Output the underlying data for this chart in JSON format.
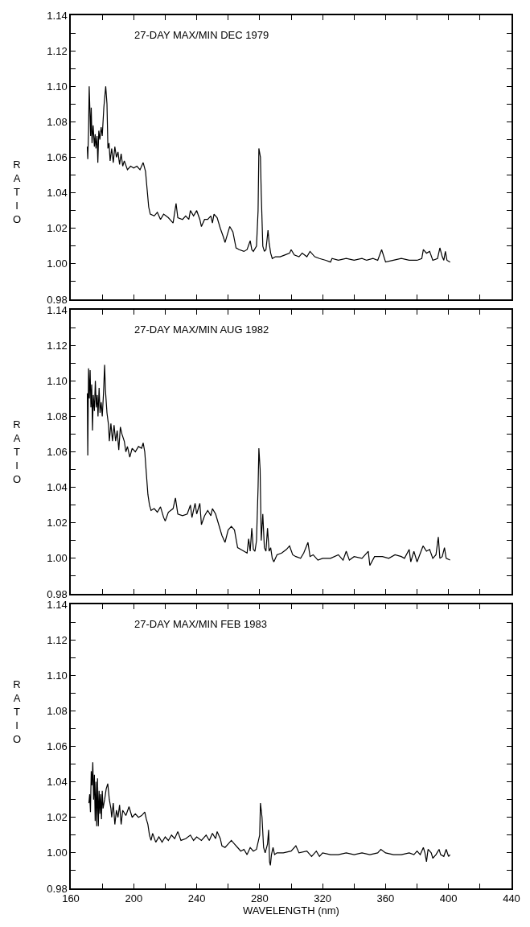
{
  "chart_data": [
    {
      "type": "line",
      "annotations": [
        "27-DAY MAX/MIN DEC 1979"
      ],
      "ylabel": "RATIO",
      "tick_labels": "y",
      "xlim": [
        160,
        440
      ],
      "xticks": [
        160,
        {
          "value": 180,
          "label": null
        },
        200,
        {
          "value": 220,
          "label": null
        },
        240,
        {
          "value": 260,
          "label": null
        },
        280,
        {
          "value": 300,
          "label": null
        },
        320,
        {
          "value": 340,
          "label": null
        },
        360,
        {
          "value": 380,
          "label": null
        },
        400,
        {
          "value": 420,
          "label": null
        },
        440
      ],
      "ylim": [
        0.98,
        1.14
      ],
      "yticks": [
        0.98,
        {
          "value": 0.99,
          "label": null
        },
        {
          "value": 1.0,
          "label": "1.00"
        },
        {
          "value": 1.01,
          "label": null
        },
        1.02,
        {
          "value": 1.03,
          "label": null
        },
        1.04,
        {
          "value": 1.05,
          "label": null
        },
        1.06,
        {
          "value": 1.07,
          "label": null
        },
        1.08,
        {
          "value": 1.09,
          "label": null
        },
        {
          "value": 1.1,
          "label": "1.10"
        },
        {
          "value": 1.11,
          "label": null
        },
        1.12,
        {
          "value": 1.13,
          "label": null
        },
        1.14
      ],
      "series": [
        {
          "color": "#000000",
          "x": [
            170.5,
            170.8,
            171.3,
            171.7,
            172.2,
            172.6,
            173,
            173.5,
            174.2,
            175,
            175.5,
            176,
            176.7,
            177.2,
            177.8,
            178.5,
            179.3,
            180,
            181,
            182.2,
            183,
            183.6,
            184.3,
            185,
            186,
            187,
            188,
            189,
            190,
            191,
            192,
            193,
            194,
            196,
            198,
            200,
            202,
            204,
            206,
            207.5,
            208.5,
            209.5,
            210.5,
            213,
            215,
            217,
            219,
            222,
            225,
            226.9,
            228,
            231,
            233,
            235,
            236,
            238,
            240,
            242,
            243,
            245,
            247,
            249,
            250,
            251,
            253,
            255,
            257,
            258,
            260,
            261,
            263,
            265,
            267,
            270,
            272,
            274,
            275,
            276,
            278,
            279,
            279.5,
            280.5,
            281,
            282,
            283,
            284,
            285.3,
            286,
            287,
            288,
            290,
            293,
            296,
            299,
            300,
            302,
            305,
            307,
            310,
            312,
            315,
            318,
            322,
            325,
            326,
            330,
            335,
            340,
            345,
            348,
            352,
            355,
            357.5,
            360,
            365,
            370,
            375,
            380,
            383,
            384,
            386,
            388,
            390,
            393,
            394.5,
            396,
            397,
            398,
            399,
            401
          ],
          "values": [
            1.066,
            1.059,
            1.075,
            1.1,
            1.085,
            1.072,
            1.088,
            1.068,
            1.078,
            1.066,
            1.073,
            1.065,
            1.072,
            1.057,
            1.075,
            1.07,
            1.077,
            1.072,
            1.088,
            1.1,
            1.09,
            1.065,
            1.068,
            1.058,
            1.065,
            1.057,
            1.066,
            1.06,
            1.063,
            1.056,
            1.062,
            1.055,
            1.058,
            1.053,
            1.055,
            1.054,
            1.055,
            1.053,
            1.057,
            1.052,
            1.042,
            1.032,
            1.028,
            1.027,
            1.029,
            1.025,
            1.028,
            1.026,
            1.023,
            1.034,
            1.026,
            1.025,
            1.027,
            1.025,
            1.03,
            1.027,
            1.03,
            1.025,
            1.021,
            1.025,
            1.025,
            1.027,
            1.023,
            1.028,
            1.026,
            1.02,
            1.015,
            1.012,
            1.018,
            1.021,
            1.018,
            1.009,
            1.008,
            1.007,
            1.008,
            1.013,
            1.008,
            1.007,
            1.01,
            1.03,
            1.065,
            1.06,
            1.04,
            1.01,
            1.007,
            1.008,
            1.019,
            1.012,
            1.006,
            1.003,
            1.004,
            1.004,
            1.005,
            1.006,
            1.008,
            1.005,
            1.004,
            1.006,
            1.004,
            1.007,
            1.004,
            1.003,
            1.002,
            1.001,
            1.003,
            1.002,
            1.003,
            1.002,
            1.003,
            1.002,
            1.003,
            1.002,
            1.008,
            1.001,
            1.002,
            1.003,
            1.002,
            1.002,
            1.003,
            1.008,
            1.006,
            1.007,
            1.002,
            1.003,
            1.009,
            1.004,
            1.002,
            1.007,
            1.002,
            1.001
          ]
        }
      ]
    },
    {
      "type": "line",
      "annotations": [
        "27-DAY MAX/MIN AUG 1982"
      ],
      "ylabel": "RATIO",
      "tick_labels": "y",
      "xlim": [
        160,
        440
      ],
      "xticks": [
        160,
        {
          "value": 180,
          "label": null
        },
        200,
        {
          "value": 220,
          "label": null
        },
        240,
        {
          "value": 260,
          "label": null
        },
        280,
        {
          "value": 300,
          "label": null
        },
        320,
        {
          "value": 340,
          "label": null
        },
        360,
        {
          "value": 380,
          "label": null
        },
        400,
        {
          "value": 420,
          "label": null
        },
        440
      ],
      "ylim": [
        0.98,
        1.14
      ],
      "yticks": [
        0.98,
        {
          "value": 0.99,
          "label": null
        },
        {
          "value": 1.0,
          "label": "1.00"
        },
        {
          "value": 1.01,
          "label": null
        },
        1.02,
        {
          "value": 1.03,
          "label": null
        },
        1.04,
        {
          "value": 1.05,
          "label": null
        },
        1.06,
        {
          "value": 1.07,
          "label": null
        },
        1.08,
        {
          "value": 1.09,
          "label": null
        },
        {
          "value": 1.1,
          "label": "1.10"
        },
        {
          "value": 1.11,
          "label": null
        },
        1.12,
        {
          "value": 1.13,
          "label": null
        },
        1.14
      ],
      "series": [
        {
          "color": "#000000",
          "x": [
            170.5,
            170.8,
            171.3,
            171.8,
            172.3,
            172.8,
            173.3,
            173.8,
            174.3,
            175,
            175.6,
            176.2,
            176.8,
            177.3,
            178,
            178.6,
            179.3,
            180,
            180.8,
            181.5,
            182,
            183,
            184,
            184.5,
            185.5,
            186.5,
            187.5,
            188.5,
            189.5,
            190.5,
            191.5,
            192.5,
            194,
            195,
            196,
            197.5,
            199,
            201,
            203,
            205,
            206,
            207,
            208,
            209,
            210,
            211,
            213,
            215,
            217,
            219,
            220,
            222,
            225,
            226.5,
            228,
            231,
            234,
            236,
            237,
            239,
            240,
            242,
            243,
            245,
            247,
            249,
            250,
            252,
            254,
            256,
            258,
            260,
            262,
            264,
            266,
            268,
            270,
            272,
            273,
            274,
            275,
            276,
            277,
            278,
            279,
            279.5,
            280.3,
            281,
            282,
            283,
            284,
            285,
            286,
            287,
            288,
            289,
            291,
            294,
            297,
            299,
            301,
            303,
            306,
            308,
            310.7,
            312,
            314,
            317,
            320,
            325,
            330,
            333,
            335,
            337,
            340,
            345,
            349,
            350,
            353,
            358,
            362,
            366,
            370,
            372,
            375,
            376,
            378,
            380,
            383.8,
            386,
            388,
            390,
            392,
            393.5,
            394.5,
            396,
            397.4,
            398.5,
            401
          ],
          "values": [
            1.093,
            1.058,
            1.107,
            1.09,
            1.106,
            1.085,
            1.098,
            1.072,
            1.092,
            1.083,
            1.1,
            1.085,
            1.092,
            1.08,
            1.096,
            1.082,
            1.088,
            1.08,
            1.093,
            1.109,
            1.095,
            1.082,
            1.075,
            1.066,
            1.076,
            1.066,
            1.075,
            1.066,
            1.072,
            1.061,
            1.074,
            1.07,
            1.066,
            1.06,
            1.063,
            1.057,
            1.062,
            1.06,
            1.063,
            1.062,
            1.065,
            1.06,
            1.048,
            1.036,
            1.03,
            1.027,
            1.028,
            1.026,
            1.029,
            1.023,
            1.021,
            1.026,
            1.028,
            1.034,
            1.025,
            1.024,
            1.025,
            1.03,
            1.023,
            1.031,
            1.025,
            1.031,
            1.019,
            1.024,
            1.027,
            1.024,
            1.028,
            1.025,
            1.019,
            1.013,
            1.009,
            1.016,
            1.018,
            1.016,
            1.006,
            1.005,
            1.004,
            1.003,
            1.011,
            1.004,
            1.017,
            1.005,
            1.004,
            1.01,
            1.04,
            1.062,
            1.05,
            1.01,
            1.025,
            1.006,
            1.004,
            1.017,
            1.004,
            1.006,
            1.0,
            0.998,
            1.002,
            1.003,
            1.005,
            1.007,
            1.002,
            1.001,
            1.0,
            1.003,
            1.009,
            1.001,
            1.002,
            0.999,
            1.0,
            1.0,
            1.002,
            0.999,
            1.004,
            0.999,
            1.001,
            1.0,
            1.004,
            0.996,
            1.001,
            1.001,
            1.0,
            1.002,
            1.001,
            1.0,
            1.005,
            0.998,
            1.004,
            0.998,
            1.007,
            1.004,
            1.005,
            1.0,
            1.002,
            1.012,
            1.0,
            1.001,
            1.006,
            1.0,
            0.999
          ]
        }
      ]
    },
    {
      "type": "line",
      "annotations": [
        "27-DAY MAX/MIN FEB 1983"
      ],
      "ylabel": "RATIO",
      "xlabel": "WAVELENGTH (nm)",
      "xlim": [
        160,
        440
      ],
      "xticks": [
        160,
        {
          "value": 180,
          "label": null
        },
        200,
        {
          "value": 220,
          "label": null
        },
        240,
        {
          "value": 260,
          "label": null
        },
        280,
        {
          "value": 300,
          "label": null
        },
        320,
        {
          "value": 340,
          "label": null
        },
        360,
        {
          "value": 380,
          "label": null
        },
        400,
        {
          "value": 420,
          "label": null
        },
        440
      ],
      "ylim": [
        0.98,
        1.14
      ],
      "yticks": [
        0.98,
        {
          "value": 0.99,
          "label": null
        },
        {
          "value": 1.0,
          "label": "1.00"
        },
        {
          "value": 1.01,
          "label": null
        },
        1.02,
        {
          "value": 1.03,
          "label": null
        },
        1.04,
        {
          "value": 1.05,
          "label": null
        },
        1.06,
        {
          "value": 1.07,
          "label": null
        },
        1.08,
        {
          "value": 1.09,
          "label": null
        },
        {
          "value": 1.1,
          "label": "1.10"
        },
        {
          "value": 1.11,
          "label": null
        },
        1.12,
        {
          "value": 1.13,
          "label": null
        },
        1.14
      ],
      "series": [
        {
          "color": "#000000",
          "x": [
            171.5,
            172,
            172.5,
            173,
            173.5,
            174,
            174.5,
            175,
            175.5,
            176,
            176.5,
            177,
            177.5,
            178,
            178.5,
            179,
            179.5,
            180,
            180.5,
            181.5,
            182.5,
            183.5,
            184.5,
            185.5,
            186,
            187,
            188,
            189,
            190,
            191,
            192,
            193,
            195,
            197,
            199,
            201,
            203,
            205,
            207,
            208,
            209,
            210,
            211,
            212,
            214,
            216,
            218,
            220,
            222,
            224,
            226,
            228,
            230,
            233,
            236,
            238,
            240,
            243,
            246,
            248,
            250,
            252,
            253,
            255,
            256,
            258,
            260,
            262,
            264,
            266,
            268,
            270,
            272,
            274,
            276,
            278,
            280,
            280.5,
            281.5,
            282.5,
            283.5,
            285,
            285.7,
            286.3,
            286.8,
            287.5,
            288.5,
            289.5,
            291,
            295,
            300,
            303,
            305,
            310,
            313,
            316,
            318,
            320,
            325,
            330,
            335,
            340,
            345,
            350,
            355,
            357,
            360,
            365,
            370,
            375,
            378,
            380,
            382,
            384,
            385,
            386,
            387,
            389,
            390,
            392,
            394,
            395,
            397,
            398.5,
            400,
            401
          ],
          "values": [
            1.028,
            1.033,
            1.023,
            1.046,
            1.038,
            1.051,
            1.03,
            1.044,
            1.018,
            1.04,
            1.015,
            1.042,
            1.015,
            1.035,
            1.022,
            1.033,
            1.019,
            1.035,
            1.025,
            1.03,
            1.036,
            1.039,
            1.03,
            1.025,
            1.02,
            1.028,
            1.016,
            1.024,
            1.02,
            1.027,
            1.016,
            1.024,
            1.021,
            1.026,
            1.02,
            1.022,
            1.02,
            1.021,
            1.023,
            1.019,
            1.016,
            1.01,
            1.007,
            1.011,
            1.006,
            1.009,
            1.006,
            1.009,
            1.007,
            1.01,
            1.008,
            1.012,
            1.007,
            1.008,
            1.01,
            1.007,
            1.009,
            1.007,
            1.01,
            1.007,
            1.011,
            1.008,
            1.012,
            1.008,
            1.004,
            1.003,
            1.005,
            1.007,
            1.005,
            1.003,
            1.001,
            1.002,
            0.999,
            1.003,
            1.001,
            1.002,
            1.01,
            1.028,
            1.02,
            1.003,
            1.0,
            1.005,
            1.013,
            0.995,
            0.993,
            0.999,
            1.003,
            0.999,
            1.0,
            1.0,
            1.001,
            1.004,
            1.0,
            1.001,
            0.998,
            1.001,
            0.998,
            1.0,
            0.999,
            0.999,
            1.0,
            0.999,
            1.0,
            0.999,
            1.0,
            1.002,
            1.0,
            0.999,
            0.999,
            1.0,
            0.999,
            1.001,
            0.999,
            1.003,
            1.0,
            0.995,
            1.002,
            1.0,
            0.997,
            0.999,
            1.002,
            0.999,
            0.998,
            1.002,
            0.998,
            0.999
          ]
        }
      ]
    }
  ]
}
